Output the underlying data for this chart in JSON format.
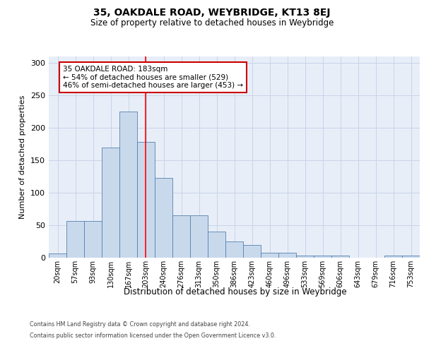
{
  "title": "35, OAKDALE ROAD, WEYBRIDGE, KT13 8EJ",
  "subtitle": "Size of property relative to detached houses in Weybridge",
  "xlabel": "Distribution of detached houses by size in Weybridge",
  "ylabel": "Number of detached properties",
  "bar_labels": [
    "20sqm",
    "57sqm",
    "93sqm",
    "130sqm",
    "167sqm",
    "203sqm",
    "240sqm",
    "276sqm",
    "313sqm",
    "350sqm",
    "386sqm",
    "423sqm",
    "460sqm",
    "496sqm",
    "533sqm",
    "569sqm",
    "606sqm",
    "643sqm",
    "679sqm",
    "716sqm",
    "753sqm"
  ],
  "bar_values": [
    6,
    57,
    57,
    170,
    225,
    178,
    123,
    65,
    65,
    40,
    25,
    20,
    8,
    8,
    3,
    3,
    3,
    0,
    0,
    3,
    3
  ],
  "bar_color": "#c9d9ec",
  "bar_edge_color": "#5580b0",
  "grid_color": "#c8d4e8",
  "bg_color": "#e8eef8",
  "red_line_x": 4.97,
  "annotation_text": "35 OAKDALE ROAD: 183sqm\n← 54% of detached houses are smaller (529)\n46% of semi-detached houses are larger (453) →",
  "annotation_box_facecolor": "#ffffff",
  "annotation_box_edgecolor": "#cc0000",
  "footer_line1": "Contains HM Land Registry data © Crown copyright and database right 2024.",
  "footer_line2": "Contains public sector information licensed under the Open Government Licence v3.0.",
  "ylim": [
    0,
    310
  ],
  "yticks": [
    0,
    50,
    100,
    150,
    200,
    250,
    300
  ]
}
